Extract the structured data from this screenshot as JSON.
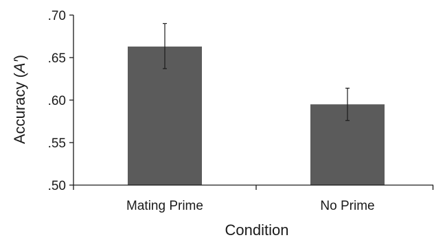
{
  "chart_data": {
    "type": "bar",
    "categories": [
      "Mating Prime",
      "No Prime"
    ],
    "values": [
      0.663,
      0.595
    ],
    "error_bars": [
      {
        "low": 0.637,
        "high": 0.69
      },
      {
        "low": 0.576,
        "high": 0.614
      }
    ],
    "xlabel": "Condition",
    "ylabel_prefix": "Accuracy (",
    "ylabel_symbol": "A′",
    "ylabel_suffix": ")",
    "ylim": [
      0.5,
      0.7
    ],
    "yticks": [
      0.5,
      0.55,
      0.6,
      0.65,
      0.7
    ],
    "ytick_labels": [
      ".50",
      ".55",
      ".60",
      ".65",
      ".70"
    ],
    "grid": false,
    "bar_color": "#5b5b5b",
    "axis_color": "#1a1a1a"
  }
}
